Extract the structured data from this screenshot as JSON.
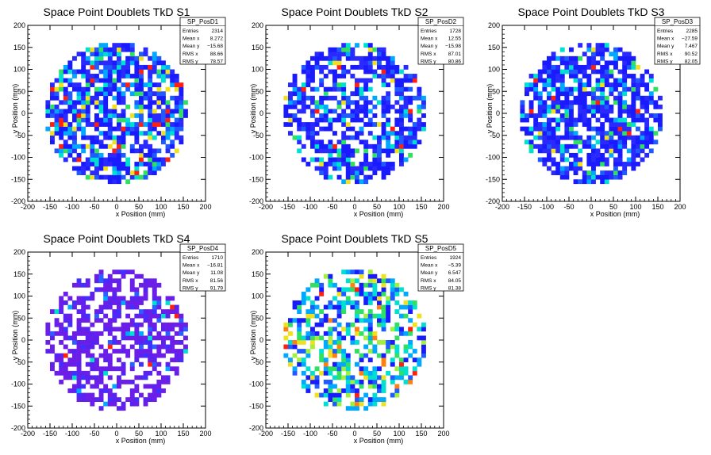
{
  "chart_data": [
    {
      "type": "heatmap",
      "title": "Space Point Doublets TkD S1",
      "xlabel": "x Position (mm)",
      "ylabel": "y Position (mm)",
      "xlim": [
        -200,
        200
      ],
      "ylim": [
        -200,
        200
      ],
      "x_ticks": [
        -200,
        -150,
        -100,
        -50,
        0,
        50,
        100,
        150,
        200
      ],
      "y_ticks": [
        -200,
        -150,
        -100,
        -50,
        0,
        50,
        100,
        150,
        200
      ],
      "stats": {
        "name": "SP_PosD1",
        "rows": [
          {
            "label": "Entries",
            "value": "2314"
          },
          {
            "label": "Mean x",
            "value": "8.272"
          },
          {
            "label": "Mean y",
            "value": "−15.68"
          },
          {
            "label": "RMS x",
            "value": "88.66"
          },
          {
            "label": "RMS y",
            "value": "78.57"
          }
        ]
      },
      "region_radius": 160,
      "bin_size": 10,
      "fill_fraction": 0.7,
      "palette": [
        "#1a1aff",
        "#2a2aff",
        "#1f5cff",
        "#00a8ff",
        "#00e0d0",
        "#30e060",
        "#f0e020",
        "#ff2010"
      ],
      "palette_weights": [
        30,
        26,
        12,
        10,
        8,
        7,
        4,
        3
      ]
    },
    {
      "type": "heatmap",
      "title": "Space Point Doublets TkD S2",
      "xlabel": "x Position (mm)",
      "ylabel": "y Position (mm)",
      "xlim": [
        -200,
        200
      ],
      "ylim": [
        -200,
        200
      ],
      "x_ticks": [
        -200,
        -150,
        -100,
        -50,
        0,
        50,
        100,
        150,
        200
      ],
      "y_ticks": [
        -200,
        -150,
        -100,
        -50,
        0,
        50,
        100,
        150,
        200
      ],
      "stats": {
        "name": "SP_PosD2",
        "rows": [
          {
            "label": "Entries",
            "value": "1728"
          },
          {
            "label": "Mean x",
            "value": "12.55"
          },
          {
            "label": "Mean y",
            "value": "−15.98"
          },
          {
            "label": "RMS x",
            "value": "87.01"
          },
          {
            "label": "RMS y",
            "value": "80.86"
          }
        ]
      },
      "region_radius": 160,
      "bin_size": 10,
      "fill_fraction": 0.6,
      "palette": [
        "#1a1aff",
        "#2a2aff",
        "#1f5cff",
        "#00a8ff",
        "#00e0d0",
        "#30e060",
        "#f0e020",
        "#ff2010"
      ],
      "palette_weights": [
        40,
        26,
        12,
        8,
        6,
        4,
        2,
        2
      ]
    },
    {
      "type": "heatmap",
      "title": "Space Point Doublets TkD S3",
      "xlabel": "x Position (mm)",
      "ylabel": "y Position (mm)",
      "xlim": [
        -200,
        200
      ],
      "ylim": [
        -200,
        200
      ],
      "x_ticks": [
        -200,
        -150,
        -100,
        -50,
        0,
        50,
        100,
        150,
        200
      ],
      "y_ticks": [
        -200,
        -150,
        -100,
        -50,
        0,
        50,
        100,
        150,
        200
      ],
      "stats": {
        "name": "SP_PosD3",
        "rows": [
          {
            "label": "Entries",
            "value": "2285"
          },
          {
            "label": "Mean x",
            "value": "−27.59"
          },
          {
            "label": "Mean y",
            "value": "7.467"
          },
          {
            "label": "RMS x",
            "value": "90.52"
          },
          {
            "label": "RMS y",
            "value": "82.05"
          }
        ]
      },
      "region_radius": 160,
      "bin_size": 10,
      "fill_fraction": 0.72,
      "palette": [
        "#1a1aff",
        "#2a2aff",
        "#1f5cff",
        "#00a8ff",
        "#00e0d0",
        "#30e060",
        "#f0e020",
        "#ff2010"
      ],
      "palette_weights": [
        44,
        26,
        10,
        6,
        6,
        5,
        2,
        1
      ]
    },
    {
      "type": "heatmap",
      "title": "Space Point Doublets TkD S4",
      "xlabel": "x Position (mm)",
      "ylabel": "y Position (mm)",
      "xlim": [
        -200,
        200
      ],
      "ylim": [
        -200,
        200
      ],
      "x_ticks": [
        -200,
        -150,
        -100,
        -50,
        0,
        50,
        100,
        150,
        200
      ],
      "y_ticks": [
        -200,
        -150,
        -100,
        -50,
        0,
        50,
        100,
        150,
        200
      ],
      "stats": {
        "name": "SP_PosD4",
        "rows": [
          {
            "label": "Entries",
            "value": "1710"
          },
          {
            "label": "Mean x",
            "value": "−16.81"
          },
          {
            "label": "Mean y",
            "value": "11.08"
          },
          {
            "label": "RMS x",
            "value": "81.56"
          },
          {
            "label": "RMS y",
            "value": "91.79"
          }
        ]
      },
      "region_radius": 160,
      "bin_size": 10,
      "fill_fraction": 0.6,
      "palette": [
        "#6a1ee8",
        "#5a22f0",
        "#4030ff",
        "#2a60ff",
        "#00a8ff",
        "#00e0d0",
        "#ff2010"
      ],
      "palette_weights": [
        60,
        20,
        8,
        4,
        3,
        2,
        1
      ]
    },
    {
      "type": "heatmap",
      "title": "Space Point Doublets TkD S5",
      "xlabel": "x Position (mm)",
      "ylabel": "y Position (mm)",
      "xlim": [
        -200,
        200
      ],
      "ylim": [
        -200,
        200
      ],
      "x_ticks": [
        -200,
        -150,
        -100,
        -50,
        0,
        50,
        100,
        150,
        200
      ],
      "y_ticks": [
        -200,
        -150,
        -100,
        -50,
        0,
        50,
        100,
        150,
        200
      ],
      "stats": {
        "name": "SP_PosD5",
        "rows": [
          {
            "label": "Entries",
            "value": "1924"
          },
          {
            "label": "Mean x",
            "value": "−5.39"
          },
          {
            "label": "Mean y",
            "value": "6.547"
          },
          {
            "label": "RMS x",
            "value": "84.05"
          },
          {
            "label": "RMS y",
            "value": "81.38"
          }
        ]
      },
      "region_radius": 160,
      "bin_size": 10,
      "fill_fraction": 0.55,
      "palette": [
        "#1a1aff",
        "#1f5cff",
        "#00a8ff",
        "#00e0d0",
        "#30e060",
        "#a0f040",
        "#f0e020",
        "#ff8010",
        "#ff2010"
      ],
      "palette_weights": [
        20,
        14,
        16,
        16,
        14,
        8,
        6,
        3,
        3
      ]
    }
  ]
}
